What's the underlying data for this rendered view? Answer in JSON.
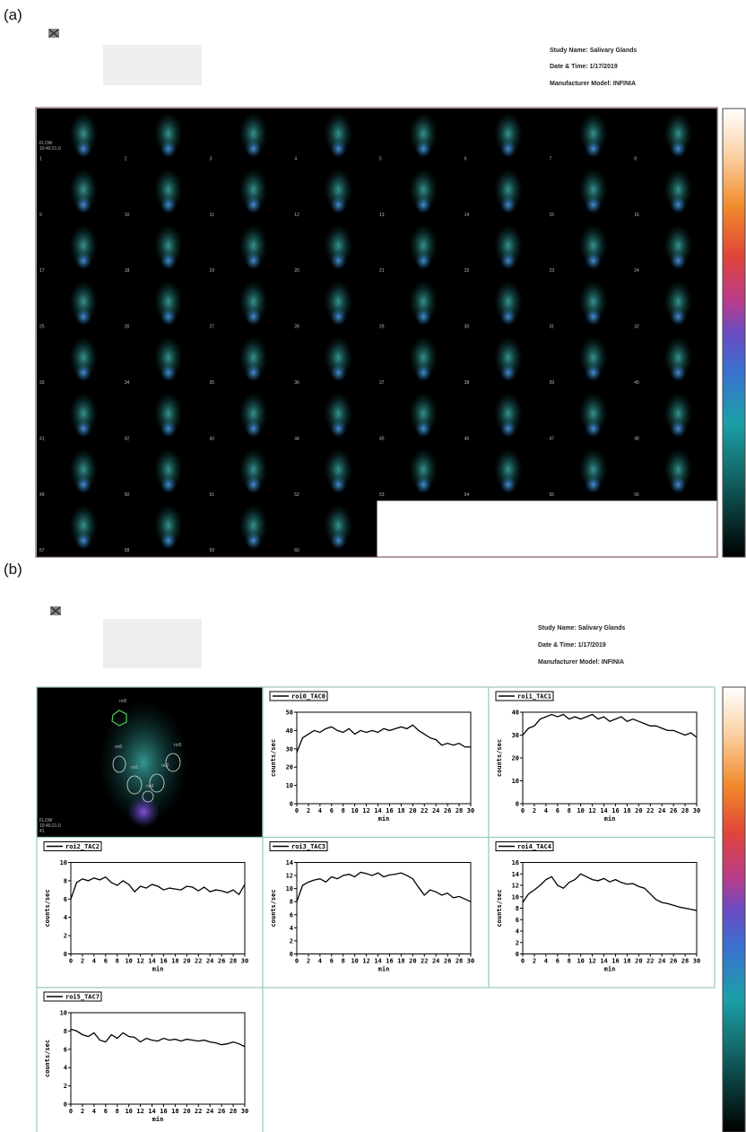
{
  "panel_a": {
    "label": "(a)",
    "header": {
      "study": "Study Name: Salivary Glands",
      "date": "Date & Time: 1/17/2019",
      "model": "Manufacturer Model: INFINIA"
    },
    "frame_caption": [
      "FLOW",
      "10:40:21.0"
    ],
    "frames": [
      1,
      2,
      3,
      4,
      5,
      6,
      7,
      8,
      9,
      10,
      11,
      12,
      13,
      14,
      15,
      16,
      17,
      18,
      19,
      20,
      21,
      22,
      23,
      24,
      25,
      26,
      27,
      28,
      29,
      30,
      31,
      32,
      33,
      34,
      35,
      36,
      37,
      38,
      39,
      40,
      41,
      42,
      43,
      44,
      45,
      46,
      47,
      48,
      49,
      50,
      51,
      52,
      53,
      54,
      55,
      56,
      57,
      58,
      59,
      60
    ]
  },
  "panel_b": {
    "label": "(b)",
    "header": {
      "study": "Study Name: Salivary Glands",
      "date": "Date & Time: 1/17/2019",
      "model": "Manufacturer Model: INFINIA"
    },
    "image_caption": [
      "FLOW",
      "10:40:21.0",
      "41"
    ],
    "roi_labels": [
      "roi5",
      "roi0",
      "roi3",
      "roi1",
      "roi2",
      "roi4"
    ]
  },
  "chart_data": [
    {
      "type": "line",
      "x_label": "min",
      "y_label": "counts/sec",
      "x": [
        0,
        1,
        2,
        3,
        4,
        5,
        6,
        7,
        8,
        9,
        10,
        11,
        12,
        13,
        14,
        15,
        16,
        17,
        18,
        19,
        20,
        21,
        22,
        23,
        24,
        25,
        26,
        27,
        28,
        29,
        30
      ],
      "xlim": [
        0,
        30
      ],
      "xticks": [
        0,
        2,
        4,
        6,
        8,
        10,
        12,
        14,
        16,
        18,
        20,
        22,
        24,
        26,
        28,
        30
      ],
      "ylim": [
        0,
        50
      ],
      "yticks": [
        0,
        10,
        20,
        30,
        40,
        50
      ],
      "series": [
        {
          "name": "roi0_TAC0",
          "color": "#000000",
          "values": [
            28,
            36,
            38,
            40,
            39,
            41,
            42,
            40,
            39,
            41,
            38,
            40,
            39,
            40,
            39,
            41,
            40,
            41,
            42,
            41,
            43,
            40,
            38,
            36,
            35,
            32,
            33,
            32,
            33,
            31,
            31
          ]
        }
      ]
    },
    {
      "type": "line",
      "x_label": "min",
      "y_label": "counts/sec",
      "x": [
        0,
        1,
        2,
        3,
        4,
        5,
        6,
        7,
        8,
        9,
        10,
        11,
        12,
        13,
        14,
        15,
        16,
        17,
        18,
        19,
        20,
        21,
        22,
        23,
        24,
        25,
        26,
        27,
        28,
        29,
        30
      ],
      "xlim": [
        0,
        30
      ],
      "xticks": [
        0,
        2,
        4,
        6,
        8,
        10,
        12,
        14,
        16,
        18,
        20,
        22,
        24,
        26,
        28,
        30
      ],
      "ylim": [
        0,
        40
      ],
      "yticks": [
        0,
        10,
        20,
        30,
        40
      ],
      "series": [
        {
          "name": "roi1_TAC1",
          "color": "#000000",
          "values": [
            30,
            33,
            34,
            37,
            38,
            39,
            38,
            39,
            37,
            38,
            37,
            38,
            39,
            37,
            38,
            36,
            37,
            38,
            36,
            37,
            36,
            35,
            34,
            34,
            33,
            32,
            32,
            31,
            30,
            31,
            29
          ]
        }
      ]
    },
    {
      "type": "line",
      "x_label": "min",
      "y_label": "counts/sec",
      "x": [
        0,
        1,
        2,
        3,
        4,
        5,
        6,
        7,
        8,
        9,
        10,
        11,
        12,
        13,
        14,
        15,
        16,
        17,
        18,
        19,
        20,
        21,
        22,
        23,
        24,
        25,
        26,
        27,
        28,
        29,
        30
      ],
      "xlim": [
        0,
        30
      ],
      "xticks": [
        0,
        2,
        4,
        6,
        8,
        10,
        12,
        14,
        16,
        18,
        20,
        22,
        24,
        26,
        28,
        30
      ],
      "ylim": [
        0,
        10
      ],
      "yticks": [
        0,
        2,
        4,
        6,
        8,
        10
      ],
      "series": [
        {
          "name": "roi2_TAC2",
          "color": "#000000",
          "values": [
            6,
            7.8,
            8.2,
            8,
            8.3,
            8.1,
            8.4,
            7.8,
            7.5,
            8,
            7.6,
            6.8,
            7.4,
            7.2,
            7.6,
            7.4,
            7,
            7.2,
            7.1,
            7,
            7.4,
            7.3,
            6.9,
            7.3,
            6.8,
            7,
            6.9,
            6.7,
            7,
            6.5,
            7.6
          ]
        }
      ]
    },
    {
      "type": "line",
      "x_label": "min",
      "y_label": "counts/sec",
      "x": [
        0,
        1,
        2,
        3,
        4,
        5,
        6,
        7,
        8,
        9,
        10,
        11,
        12,
        13,
        14,
        15,
        16,
        17,
        18,
        19,
        20,
        21,
        22,
        23,
        24,
        25,
        26,
        27,
        28,
        29,
        30
      ],
      "xlim": [
        0,
        30
      ],
      "xticks": [
        0,
        2,
        4,
        6,
        8,
        10,
        12,
        14,
        16,
        18,
        20,
        22,
        24,
        26,
        28,
        30
      ],
      "ylim": [
        0,
        14
      ],
      "yticks": [
        0,
        2,
        4,
        6,
        8,
        10,
        12,
        14
      ],
      "series": [
        {
          "name": "roi3_TAC3",
          "color": "#000000",
          "values": [
            8,
            10.5,
            11,
            11.3,
            11.5,
            11,
            11.8,
            11.5,
            12,
            12.2,
            11.8,
            12.5,
            12.3,
            12,
            12.4,
            11.8,
            12.1,
            12.2,
            12.4,
            12,
            11.5,
            10.2,
            9,
            9.8,
            9.5,
            9,
            9.3,
            8.6,
            8.8,
            8.4,
            8
          ]
        }
      ]
    },
    {
      "type": "line",
      "x_label": "min",
      "y_label": "counts/sec",
      "x": [
        0,
        1,
        2,
        3,
        4,
        5,
        6,
        7,
        8,
        9,
        10,
        11,
        12,
        13,
        14,
        15,
        16,
        17,
        18,
        19,
        20,
        21,
        22,
        23,
        24,
        25,
        26,
        27,
        28,
        29,
        30
      ],
      "xlim": [
        0,
        30
      ],
      "xticks": [
        0,
        2,
        4,
        6,
        8,
        10,
        12,
        14,
        16,
        18,
        20,
        22,
        24,
        26,
        28,
        30
      ],
      "ylim": [
        0,
        16
      ],
      "yticks": [
        0,
        2,
        4,
        6,
        8,
        10,
        12,
        14,
        16
      ],
      "series": [
        {
          "name": "roi4_TAC4",
          "color": "#000000",
          "values": [
            9,
            10.5,
            11.2,
            12,
            13,
            13.5,
            12,
            11.5,
            12.5,
            13,
            14,
            13.5,
            13,
            12.8,
            13.2,
            12.6,
            13,
            12.5,
            12.2,
            12.3,
            11.8,
            11.5,
            10.5,
            9.5,
            9,
            8.8,
            8.5,
            8.2,
            8,
            7.8,
            7.6
          ]
        }
      ]
    },
    {
      "type": "line",
      "x_label": "min",
      "y_label": "counts/sec",
      "x": [
        0,
        1,
        2,
        3,
        4,
        5,
        6,
        7,
        8,
        9,
        10,
        11,
        12,
        13,
        14,
        15,
        16,
        17,
        18,
        19,
        20,
        21,
        22,
        23,
        24,
        25,
        26,
        27,
        28,
        29,
        30
      ],
      "xlim": [
        0,
        30
      ],
      "xticks": [
        0,
        2,
        4,
        6,
        8,
        10,
        12,
        14,
        16,
        18,
        20,
        22,
        24,
        26,
        28,
        30
      ],
      "ylim": [
        0,
        10
      ],
      "yticks": [
        0,
        2,
        4,
        6,
        8,
        10
      ],
      "series": [
        {
          "name": "roi5_TAC7",
          "color": "#000000",
          "values": [
            8.2,
            8,
            7.6,
            7.4,
            7.8,
            7,
            6.8,
            7.6,
            7.2,
            7.8,
            7.4,
            7.3,
            6.8,
            7.2,
            7,
            6.9,
            7.2,
            7,
            7.1,
            6.9,
            7.1,
            7,
            6.9,
            7,
            6.8,
            6.7,
            6.5,
            6.6,
            6.8,
            6.6,
            6.3
          ]
        }
      ]
    }
  ]
}
